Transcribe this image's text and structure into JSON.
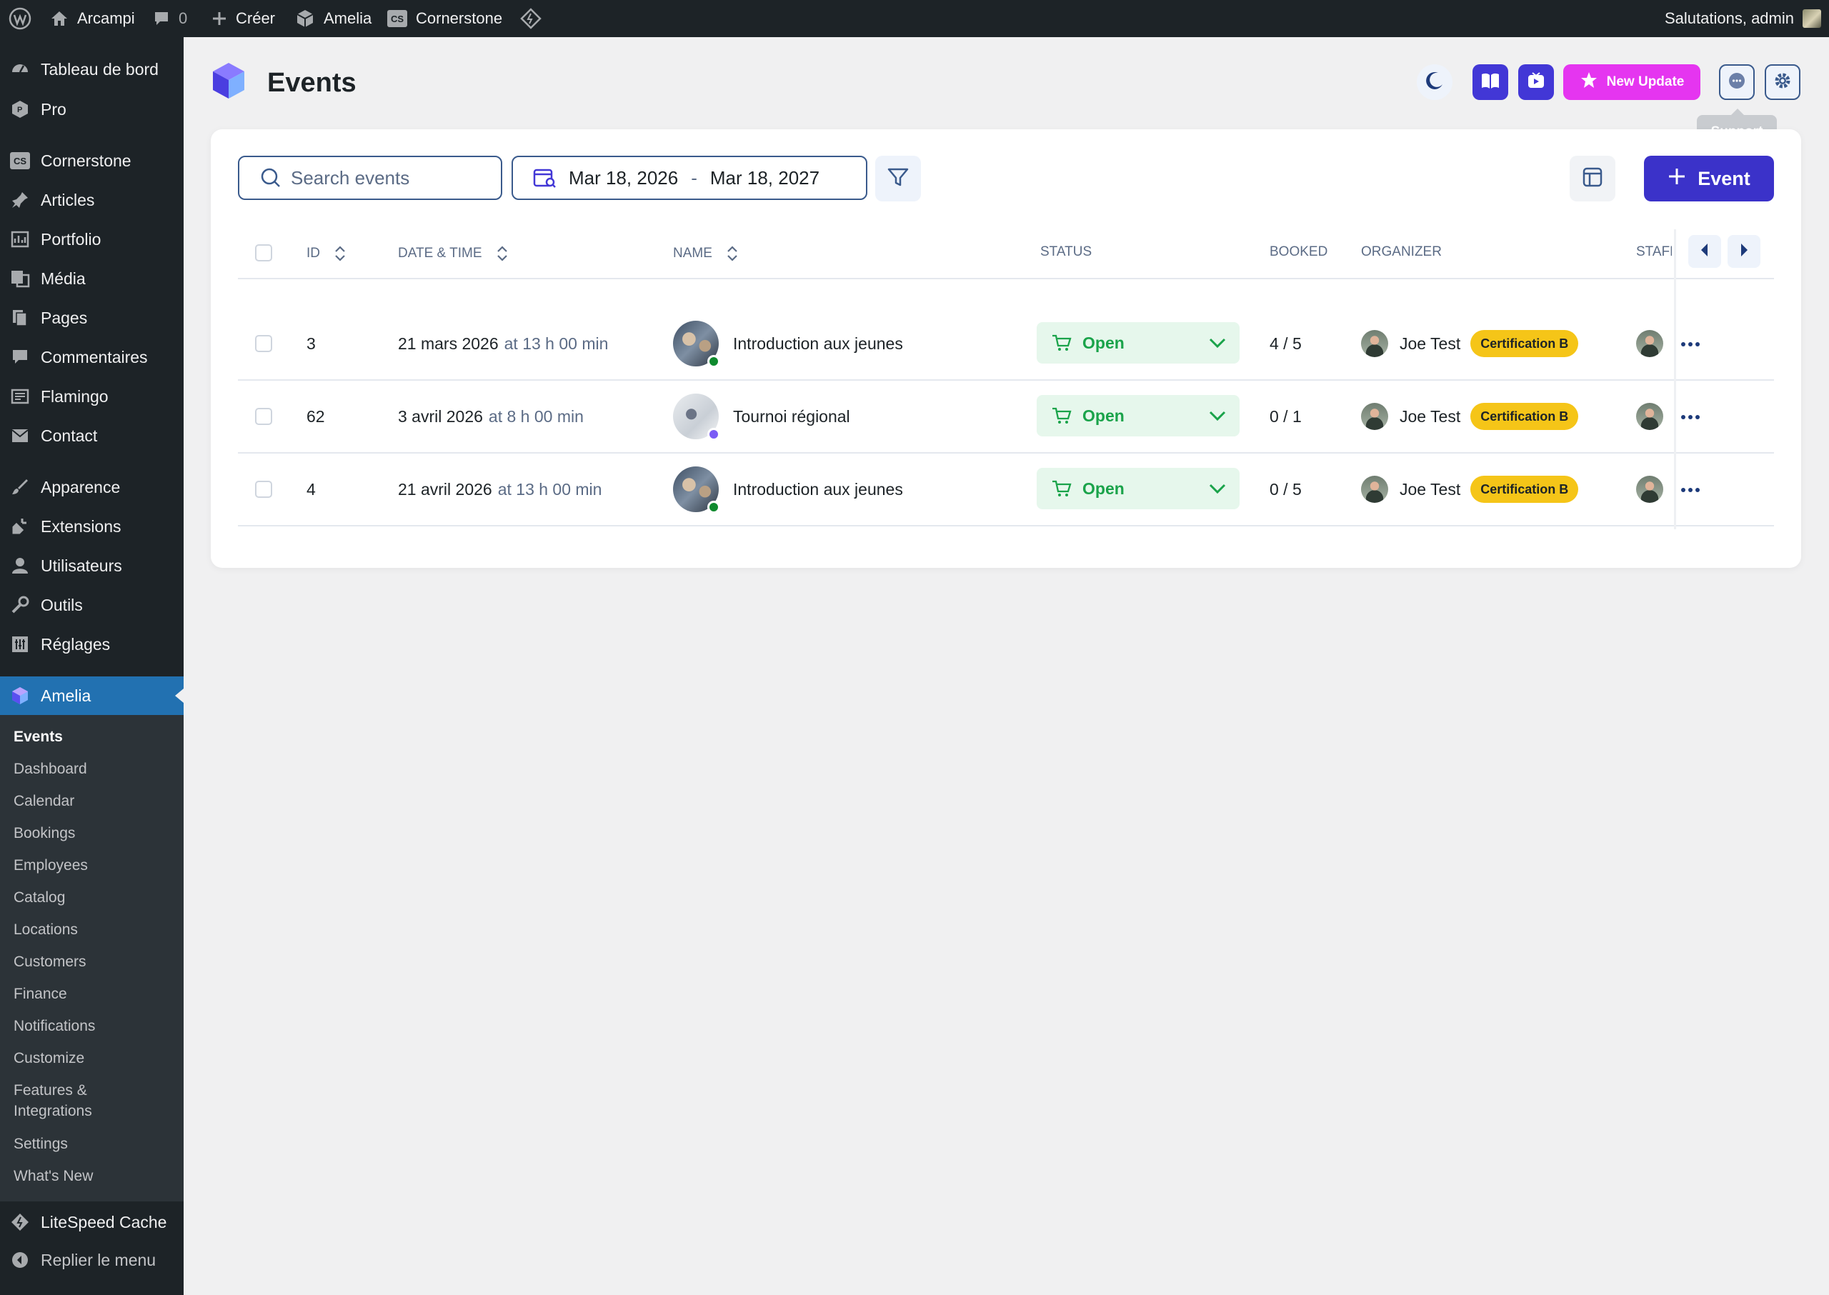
{
  "admin_bar": {
    "site_name": "Arcampi",
    "comments_count": "0",
    "create_label": "Créer",
    "amelia_label": "Amelia",
    "cornerstone_label": "Cornerstone",
    "greeting": "Salutations, admin"
  },
  "sidebar": {
    "items": [
      {
        "label": "Tableau de bord",
        "icon": "dashboard-icon"
      },
      {
        "label": "Pro",
        "icon": "pro-icon"
      },
      {
        "label": "Cornerstone",
        "icon": "cs-icon"
      },
      {
        "label": "Articles",
        "icon": "pin-icon"
      },
      {
        "label": "Portfolio",
        "icon": "portfolio-icon"
      },
      {
        "label": "Média",
        "icon": "media-icon"
      },
      {
        "label": "Pages",
        "icon": "pages-icon"
      },
      {
        "label": "Commentaires",
        "icon": "comment-icon"
      },
      {
        "label": "Flamingo",
        "icon": "flamingo-icon"
      },
      {
        "label": "Contact",
        "icon": "mail-icon"
      },
      {
        "label": "Apparence",
        "icon": "brush-icon"
      },
      {
        "label": "Extensions",
        "icon": "plugin-icon"
      },
      {
        "label": "Utilisateurs",
        "icon": "user-icon"
      },
      {
        "label": "Outils",
        "icon": "wrench-icon"
      },
      {
        "label": "Réglages",
        "icon": "settings-icon"
      }
    ],
    "active_item": {
      "label": "Amelia",
      "icon": "amelia-icon"
    },
    "submenu": [
      "Events",
      "Dashboard",
      "Calendar",
      "Bookings",
      "Employees",
      "Catalog",
      "Locations",
      "Customers",
      "Finance",
      "Notifications",
      "Customize",
      "Features &",
      "Integrations",
      "Settings",
      "What's New"
    ],
    "litespeed_label": "LiteSpeed Cache",
    "collapse_label": "Replier le menu"
  },
  "header": {
    "title": "Events",
    "new_update_label": "New Update",
    "support_tooltip": "Support"
  },
  "toolbar": {
    "search_placeholder": "Search events",
    "date_start": "Mar 18, 2026",
    "date_separator": "-",
    "date_end": "Mar 18, 2027",
    "add_event_label": "Event"
  },
  "table": {
    "columns": [
      "ID",
      "DATE & TIME",
      "NAME",
      "STATUS",
      "BOOKED",
      "ORGANIZER",
      "STAFF"
    ],
    "rows": [
      {
        "id": "3",
        "date": "21 mars 2026",
        "time": "at 13 h 00 min",
        "name": "Introduction aux jeunes",
        "status": "Open",
        "booked": "4 / 5",
        "organizer": "Joe Test",
        "badge": "Certification B",
        "dot_color": "#0f8a2e",
        "thumb": "thumb-a"
      },
      {
        "id": "62",
        "date": "3 avril 2026",
        "time": "at 8 h 00 min",
        "name": "Tournoi régional",
        "status": "Open",
        "booked": "0 / 1",
        "organizer": "Joe Test",
        "badge": "Certification B",
        "dot_color": "#7b5cf5",
        "thumb": "thumb-b"
      },
      {
        "id": "4",
        "date": "21 avril 2026",
        "time": "at 13 h 00 min",
        "name": "Introduction aux jeunes",
        "status": "Open",
        "booked": "0 / 5",
        "organizer": "Joe Test",
        "badge": "Certification B",
        "dot_color": "#0f8a2e",
        "thumb": "thumb-a"
      }
    ]
  },
  "colors": {
    "accent": "#3b32c9",
    "wp_blue": "#2271b1",
    "status_green": "#1aa34a",
    "badge_yellow": "#f5c518",
    "update_pink": "#e535f0"
  }
}
